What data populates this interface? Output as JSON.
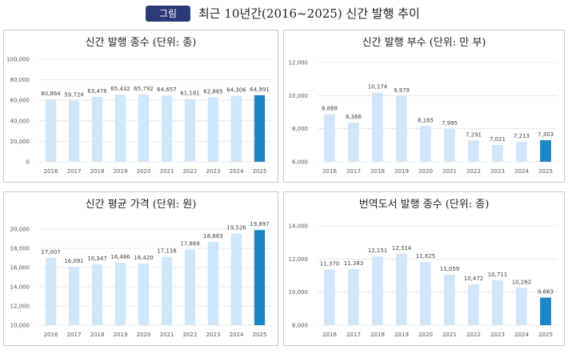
{
  "figure": {
    "badge": "그림",
    "title": "최근 10년간(2016~2025) 신간 발행 추이"
  },
  "colors": {
    "bar": "#cfe6fb",
    "highlight": "#1a86c8"
  },
  "chart_data": [
    {
      "type": "bar",
      "title": "신간 발행 종수 (단위: 종)",
      "categories": [
        "2016",
        "2017",
        "2018",
        "2019",
        "2020",
        "2021",
        "2022",
        "2023",
        "2024",
        "2025"
      ],
      "values": [
        60864,
        59724,
        63476,
        65432,
        65792,
        64657,
        61181,
        62865,
        64306,
        64991
      ],
      "ylim": [
        0,
        100000
      ],
      "yticks": [
        "0",
        "20,000",
        "40,000",
        "60,000",
        "80,000",
        "100,000"
      ],
      "ytick_values": [
        0,
        20000,
        40000,
        60000,
        80000,
        100000
      ],
      "grid": true
    },
    {
      "type": "bar",
      "title": "신간 발행 부수 (단위: 만 부)",
      "categories": [
        "2016",
        "2017",
        "2018",
        "2019",
        "2020",
        "2021",
        "2022",
        "2023",
        "2024",
        "2025"
      ],
      "values": [
        8868,
        8366,
        10174,
        9979,
        8165,
        7995,
        7291,
        7021,
        7213,
        7303
      ],
      "ylim": [
        6000,
        12000
      ],
      "yticks": [
        "6,000",
        "8,000",
        "10,000",
        "12,000"
      ],
      "ytick_values": [
        6000,
        8000,
        10000,
        12000
      ],
      "grid": true
    },
    {
      "type": "bar",
      "title": "신간 평균 가격 (단위: 원)",
      "categories": [
        "2016",
        "2017",
        "2018",
        "2019",
        "2020",
        "2021",
        "2022",
        "2023",
        "2024",
        "2025"
      ],
      "values": [
        17007,
        16091,
        16347,
        16486,
        16420,
        17116,
        17869,
        18663,
        19526,
        19897
      ],
      "ylim": [
        10000,
        20000
      ],
      "yticks": [
        "10,000",
        "12,000",
        "14,000",
        "16,000",
        "18,000",
        "20,000"
      ],
      "ytick_values": [
        10000,
        12000,
        14000,
        16000,
        18000,
        20000
      ],
      "grid": true
    },
    {
      "type": "bar",
      "title": "번역도서 발행 종수 (단위: 종)",
      "categories": [
        "2016",
        "2017",
        "2018",
        "2019",
        "2020",
        "2021",
        "2022",
        "2023",
        "2024",
        "2025"
      ],
      "values": [
        11370,
        11383,
        12151,
        12314,
        11825,
        11059,
        10472,
        10711,
        10262,
        9663
      ],
      "ylim": [
        8000,
        14000
      ],
      "yticks": [
        "8,000",
        "10,000",
        "12,000",
        "14,000"
      ],
      "ytick_values": [
        8000,
        10000,
        12000,
        14000
      ],
      "grid": true
    }
  ]
}
